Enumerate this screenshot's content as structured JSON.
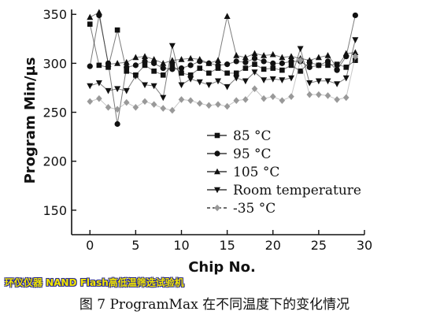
{
  "watermark": "环仪仪器 NAND Flash高低温筛选试验机",
  "caption": "图 7 ProgramMax 在不同温度下的变化情况",
  "chart_data": {
    "type": "line",
    "xlabel": "Chip No.",
    "ylabel": "Program Min/µs",
    "xlim": [
      -2,
      30
    ],
    "ylim": [
      125,
      355
    ],
    "xticks": [
      0,
      5,
      10,
      15,
      20,
      25,
      30
    ],
    "yticks": [
      150,
      200,
      250,
      300,
      350
    ],
    "legend_position": "lower-center",
    "x": [
      0,
      1,
      2,
      3,
      4,
      5,
      6,
      7,
      8,
      9,
      10,
      11,
      12,
      13,
      14,
      15,
      16,
      17,
      18,
      19,
      20,
      21,
      22,
      23,
      24,
      25,
      26,
      27,
      28,
      29
    ],
    "series": [
      {
        "name": "85 °C",
        "marker": "square",
        "color": "#111111",
        "values": [
          340,
          298,
          296,
          334,
          292,
          288,
          298,
          292,
          288,
          298,
          290,
          288,
          295,
          290,
          295,
          290,
          290,
          295,
          299,
          294,
          295,
          293,
          298,
          292,
          301,
          298,
          298,
          299,
          296,
          303
        ]
      },
      {
        "name": "95 °C",
        "marker": "circle",
        "color": "#111111",
        "values": [
          297,
          349,
          300,
          238,
          296,
          298,
          302,
          300,
          295,
          294,
          295,
          298,
          302,
          300,
          298,
          299,
          302,
          301,
          305,
          302,
          300,
          300,
          302,
          302,
          296,
          298,
          302,
          293,
          307,
          349
        ]
      },
      {
        "name": "105 °C",
        "marker": "triangle-up",
        "color": "#111111",
        "values": [
          347,
          352,
          299,
          300,
          301,
          306,
          307,
          304,
          300,
          303,
          304,
          305,
          304,
          300,
          303,
          348,
          308,
          306,
          310,
          308,
          309,
          306,
          307,
          305,
          303,
          306,
          308,
          296,
          310,
          311
        ]
      },
      {
        "name": "Room temperature",
        "marker": "triangle-down",
        "color": "#111111",
        "values": [
          277,
          280,
          272,
          274,
          272,
          287,
          278,
          277,
          265,
          318,
          278,
          284,
          281,
          278,
          282,
          276,
          285,
          282,
          291,
          283,
          284,
          283,
          285,
          315,
          280,
          282,
          282,
          279,
          285,
          324
        ]
      },
      {
        "name": "-35 °C",
        "marker": "diamond",
        "color": "#999999",
        "values": [
          261,
          264,
          255,
          253,
          260,
          255,
          261,
          258,
          254,
          252,
          263,
          262,
          259,
          257,
          258,
          256,
          262,
          263,
          274,
          264,
          266,
          262,
          266,
          303,
          268,
          268,
          267,
          263,
          265,
          307
        ]
      }
    ]
  }
}
